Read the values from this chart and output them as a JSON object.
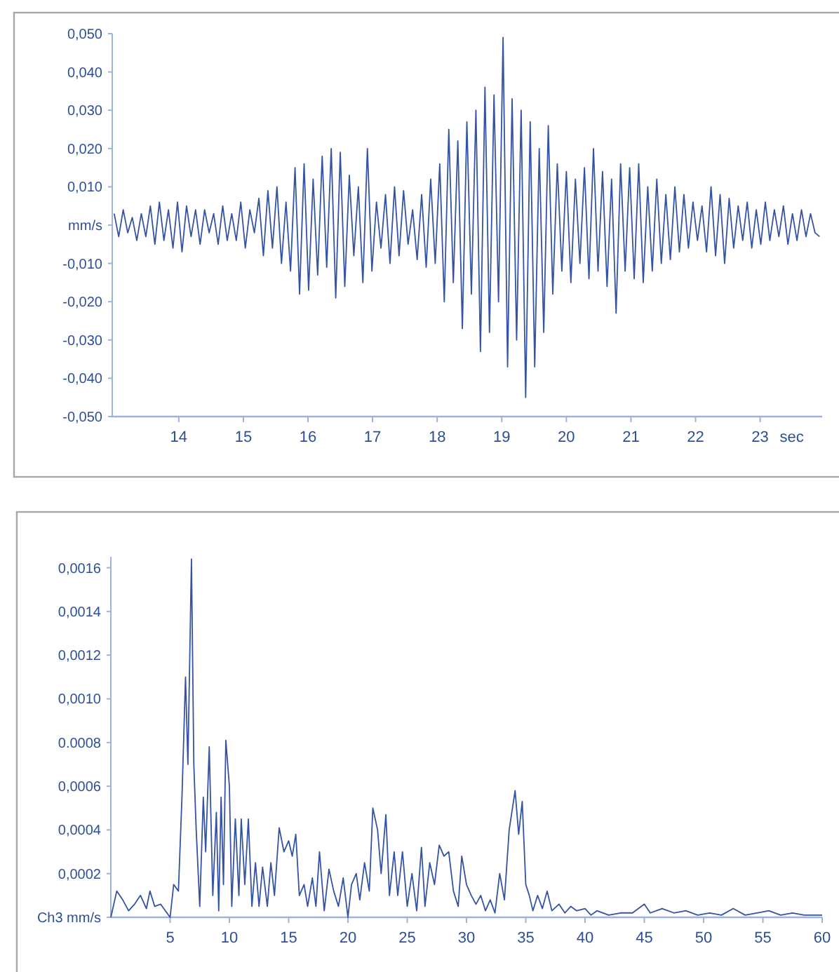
{
  "chart_data": [
    {
      "type": "line",
      "xlabel": "sec",
      "color": "#3553a3",
      "xlim": [
        12.97,
        23.96
      ],
      "ylim": [
        -0.05,
        0.05
      ],
      "xticks": [
        14,
        15,
        16,
        17,
        18,
        19,
        20,
        21,
        22,
        23
      ],
      "yticks": [
        {
          "value": 0.05,
          "label": "0,050"
        },
        {
          "value": 0.04,
          "label": "0,040"
        },
        {
          "value": 0.03,
          "label": "0,030"
        },
        {
          "value": 0.02,
          "label": "0,020"
        },
        {
          "value": 0.01,
          "label": "0,010"
        },
        {
          "value": 0,
          "label": "mm/s"
        },
        {
          "value": -0.01,
          "label": "-0,010"
        },
        {
          "value": -0.02,
          "label": "-0,020"
        },
        {
          "value": -0.03,
          "label": "-0,030"
        },
        {
          "value": -0.04,
          "label": "-0,040"
        },
        {
          "value": -0.05,
          "label": "-0,050"
        }
      ],
      "x": [
        13.0,
        13.07,
        13.14,
        13.21,
        13.28,
        13.35,
        13.42,
        13.49,
        13.56,
        13.63,
        13.7,
        13.77,
        13.84,
        13.91,
        13.98,
        14.05,
        14.12,
        14.19,
        14.26,
        14.33,
        14.4,
        14.47,
        14.54,
        14.61,
        14.68,
        14.75,
        14.82,
        14.89,
        14.96,
        15.03,
        15.1,
        15.17,
        15.24,
        15.31,
        15.38,
        15.45,
        15.52,
        15.59,
        15.66,
        15.73,
        15.8,
        15.87,
        15.94,
        16.01,
        16.08,
        16.15,
        16.22,
        16.29,
        16.36,
        16.43,
        16.5,
        16.57,
        16.64,
        16.71,
        16.78,
        16.85,
        16.92,
        16.99,
        17.06,
        17.13,
        17.2,
        17.27,
        17.34,
        17.41,
        17.48,
        17.55,
        17.62,
        17.69,
        17.76,
        17.83,
        17.9,
        17.97,
        18.04,
        18.11,
        18.18,
        18.25,
        18.32,
        18.39,
        18.46,
        18.53,
        18.6,
        18.67,
        18.74,
        18.81,
        18.88,
        18.95,
        19.02,
        19.09,
        19.16,
        19.23,
        19.3,
        19.37,
        19.44,
        19.51,
        19.58,
        19.65,
        19.72,
        19.79,
        19.86,
        19.93,
        20.0,
        20.07,
        20.14,
        20.21,
        20.28,
        20.35,
        20.42,
        20.49,
        20.56,
        20.63,
        20.7,
        20.77,
        20.84,
        20.91,
        20.98,
        21.05,
        21.12,
        21.19,
        21.26,
        21.33,
        21.4,
        21.47,
        21.54,
        21.61,
        21.68,
        21.75,
        21.82,
        21.89,
        21.96,
        22.03,
        22.1,
        22.17,
        22.24,
        22.31,
        22.38,
        22.45,
        22.52,
        22.59,
        22.66,
        22.73,
        22.8,
        22.87,
        22.94,
        23.01,
        23.08,
        23.15,
        23.22,
        23.29,
        23.36,
        23.43,
        23.5,
        23.57,
        23.64,
        23.71,
        23.78,
        23.85,
        23.92
      ],
      "values": [
        0.003,
        -0.003,
        0.004,
        -0.002,
        0.002,
        -0.004,
        0.003,
        -0.003,
        0.005,
        -0.005,
        0.006,
        -0.004,
        0.004,
        -0.006,
        0.006,
        -0.007,
        0.005,
        -0.003,
        0.004,
        -0.005,
        0.004,
        -0.002,
        0.003,
        -0.005,
        0.005,
        -0.004,
        0.003,
        -0.004,
        0.006,
        -0.006,
        0.004,
        -0.002,
        0.007,
        -0.008,
        0.009,
        -0.006,
        0.01,
        -0.01,
        0.006,
        -0.012,
        0.015,
        -0.018,
        0.016,
        -0.017,
        0.012,
        -0.013,
        0.018,
        -0.011,
        0.02,
        -0.019,
        0.019,
        -0.016,
        0.013,
        -0.008,
        0.01,
        -0.015,
        0.02,
        -0.012,
        0.006,
        -0.006,
        0.008,
        -0.01,
        0.01,
        -0.008,
        0.009,
        -0.005,
        0.004,
        -0.009,
        0.008,
        -0.011,
        0.012,
        -0.01,
        0.016,
        -0.02,
        0.025,
        -0.015,
        0.022,
        -0.027,
        0.027,
        -0.018,
        0.03,
        -0.033,
        0.036,
        -0.028,
        0.034,
        -0.02,
        0.049,
        -0.037,
        0.033,
        -0.03,
        0.03,
        -0.045,
        0.027,
        -0.037,
        0.02,
        -0.028,
        0.026,
        -0.018,
        0.016,
        -0.012,
        0.014,
        -0.015,
        0.012,
        -0.01,
        0.015,
        -0.014,
        0.02,
        -0.012,
        0.014,
        -0.016,
        0.012,
        -0.023,
        0.016,
        -0.012,
        0.015,
        -0.014,
        0.016,
        -0.015,
        0.01,
        -0.012,
        0.012,
        -0.01,
        0.008,
        -0.009,
        0.01,
        -0.007,
        0.008,
        -0.006,
        0.006,
        -0.004,
        0.005,
        -0.007,
        0.01,
        -0.008,
        0.008,
        -0.01,
        0.007,
        -0.006,
        0.005,
        -0.004,
        0.006,
        -0.006,
        0.004,
        -0.005,
        0.006,
        -0.004,
        0.004,
        -0.003,
        0.005,
        -0.005,
        0.003,
        -0.004,
        0.004,
        -0.003,
        0.003,
        -0.002,
        -0.003
      ]
    },
    {
      "type": "line",
      "color": "#3553a3",
      "xlim": [
        0,
        60
      ],
      "ylim": [
        0,
        0.00165
      ],
      "xticks": [
        5,
        10,
        15,
        20,
        25,
        30,
        35,
        40,
        45,
        50,
        55,
        60
      ],
      "yticks": [
        {
          "value": 0.0016,
          "label": "0,0016"
        },
        {
          "value": 0.0014,
          "label": "0,0014"
        },
        {
          "value": 0.0012,
          "label": "0,0012"
        },
        {
          "value": 0.001,
          "label": "0,0010"
        },
        {
          "value": 0.0008,
          "label": "0.0008"
        },
        {
          "value": 0.0006,
          "label": "0,0006"
        },
        {
          "value": 0.0004,
          "label": "0,0004"
        },
        {
          "value": 0.0002,
          "label": "0,0002"
        },
        {
          "value": 0,
          "label": "Ch3 mm/s"
        }
      ],
      "x": [
        0,
        0.5,
        1,
        1.5,
        2,
        2.5,
        3,
        3.3,
        3.7,
        4.2,
        4.6,
        5,
        5.3,
        5.7,
        6.0,
        6.3,
        6.5,
        6.8,
        7.0,
        7.2,
        7.5,
        7.8,
        8.0,
        8.3,
        8.6,
        8.9,
        9.1,
        9.3,
        9.5,
        9.7,
        10.0,
        10.2,
        10.5,
        10.8,
        11.0,
        11.3,
        11.6,
        11.9,
        12.2,
        12.5,
        12.8,
        13.2,
        13.5,
        13.8,
        14.2,
        14.6,
        15.0,
        15.3,
        15.6,
        15.9,
        16.3,
        16.6,
        17.0,
        17.3,
        17.6,
        18.0,
        18.4,
        18.8,
        19.2,
        19.6,
        20.0,
        20.3,
        20.7,
        21.0,
        21.4,
        21.8,
        22.1,
        22.5,
        22.8,
        23.2,
        23.5,
        23.9,
        24.2,
        24.6,
        25.0,
        25.4,
        25.8,
        26.2,
        26.5,
        26.9,
        27.3,
        27.7,
        28.1,
        28.5,
        28.9,
        29.3,
        29.6,
        30.0,
        30.4,
        30.8,
        31.2,
        31.6,
        32.0,
        32.4,
        32.8,
        33.2,
        33.6,
        34.1,
        34.4,
        34.7,
        35.0,
        35.3,
        35.6,
        36.0,
        36.4,
        36.8,
        37.2,
        37.8,
        38.3,
        38.8,
        39.3,
        40.0,
        40.5,
        41,
        42,
        43,
        44,
        45,
        45.5,
        46.5,
        47.5,
        48.5,
        49.5,
        50.5,
        51.5,
        52.5,
        53.5,
        54.5,
        55.5,
        56.5,
        57.5,
        58.5,
        60
      ],
      "values": [
        0.0,
        0.00012,
        8e-05,
        3e-05,
        6e-05,
        0.0001,
        4e-05,
        0.00012,
        5e-05,
        6e-05,
        3e-05,
        0.0,
        0.00015,
        0.00012,
        0.00055,
        0.0011,
        0.0007,
        0.00164,
        0.0007,
        0.0004,
        5e-05,
        0.00055,
        0.0003,
        0.00078,
        0.0001,
        0.00048,
        3e-05,
        0.00055,
        0.00015,
        0.00081,
        0.0006,
        5e-05,
        0.00045,
        0.0001,
        0.00045,
        0.00015,
        0.00045,
        5e-05,
        0.00025,
        5e-05,
        0.00023,
        5e-05,
        0.00025,
        0.0001,
        0.00041,
        0.0003,
        0.00035,
        0.00028,
        0.00038,
        0.0001,
        0.00015,
        5e-05,
        0.00018,
        5e-05,
        0.0003,
        3e-05,
        0.00022,
        0.00012,
        5e-05,
        0.00018,
        0.0,
        0.00015,
        0.0002,
        8e-05,
        0.00025,
        0.00012,
        0.0005,
        0.0004,
        0.0002,
        0.00047,
        0.0001,
        0.0003,
        0.0001,
        0.0003,
        5e-05,
        0.0002,
        3e-05,
        0.00032,
        5e-05,
        0.00025,
        0.00015,
        0.00033,
        0.00028,
        0.0003,
        0.00012,
        5e-05,
        0.00028,
        0.00015,
        0.0001,
        6e-05,
        0.0001,
        3e-05,
        8e-05,
        2e-05,
        0.0002,
        8e-05,
        0.0004,
        0.00058,
        0.00038,
        0.00053,
        0.00015,
        0.0001,
        3e-05,
        0.0001,
        4e-05,
        0.00012,
        3e-05,
        6e-05,
        2e-05,
        5e-05,
        3e-05,
        4e-05,
        1e-05,
        3e-05,
        1e-05,
        2e-05,
        2e-05,
        6e-05,
        2e-05,
        4e-05,
        2e-05,
        3e-05,
        1e-05,
        2e-05,
        1e-05,
        4e-05,
        1e-05,
        2e-05,
        3e-05,
        1e-05,
        2e-05,
        1e-05,
        1e-05
      ]
    }
  ]
}
